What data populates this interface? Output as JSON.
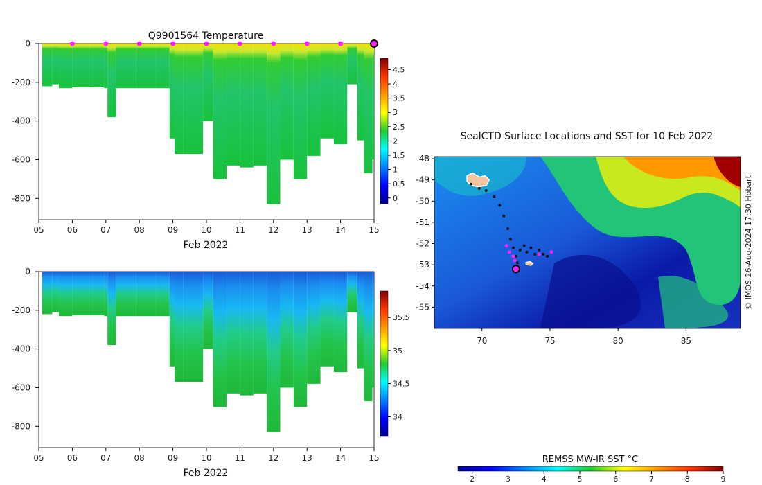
{
  "chart_data": [
    {
      "type": "heatmap",
      "title": "Q9901564  Temperature",
      "xlabel": "Feb 2022",
      "x_ticks": [
        "05",
        "06",
        "07",
        "08",
        "09",
        "10",
        "11",
        "12",
        "13",
        "14",
        "15"
      ],
      "xlim": [
        5,
        15
      ],
      "ylim": [
        -910,
        0
      ],
      "y_ticks": [
        0,
        -200,
        -400,
        -600,
        -800
      ],
      "colorbar": {
        "range": [
          -0.2,
          4.9
        ],
        "ticks": [
          "0",
          "0.5",
          "1",
          "1.5",
          "2",
          "2.5",
          "3",
          "3.5",
          "4",
          "4.5"
        ]
      },
      "markers_days": [
        6,
        7,
        8,
        9,
        10,
        11,
        12,
        13,
        14,
        15
      ],
      "marker_color": "#ff22ff",
      "profile_depth_m": {
        "days": [
          5.1,
          5.4,
          5.6,
          6.0,
          6.5,
          6.95,
          7.05,
          7.3,
          7.9,
          8.5,
          8.9,
          9.05,
          9.3,
          9.9,
          10.2,
          10.6,
          11.0,
          11.4,
          11.8,
          12.2,
          12.6,
          13.0,
          13.4,
          13.8,
          14.2,
          14.5,
          14.7,
          14.95
        ],
        "max_depth": [
          220,
          210,
          230,
          225,
          225,
          230,
          380,
          230,
          230,
          230,
          490,
          570,
          570,
          400,
          700,
          630,
          640,
          630,
          830,
          600,
          700,
          580,
          490,
          520,
          210,
          500,
          670,
          600
        ]
      }
    },
    {
      "type": "heatmap",
      "title": "",
      "xlabel": "Feb 2022",
      "x_ticks": [
        "05",
        "06",
        "07",
        "08",
        "09",
        "10",
        "11",
        "12",
        "13",
        "14",
        "15"
      ],
      "xlim": [
        5,
        15
      ],
      "ylim": [
        -910,
        0
      ],
      "y_ticks": [
        0,
        -200,
        -400,
        -600,
        -800
      ],
      "colorbar": {
        "range": [
          33.7,
          35.9
        ],
        "ticks": [
          "34",
          "34.5",
          "35",
          "35.5"
        ]
      }
    },
    {
      "type": "heatmap",
      "title": "SealCTD Surface Locations and SST for 10 Feb 2022",
      "xlim": [
        66.5,
        89
      ],
      "ylim": [
        -56,
        -47.9
      ],
      "x_ticks": [
        "70",
        "75",
        "80",
        "85"
      ],
      "y_ticks": [
        "-48",
        "-49",
        "-50",
        "-51",
        "-52",
        "-53",
        "-54",
        "-55"
      ],
      "colorbar": {
        "label": "REMSS MW-IR SST °C",
        "range": [
          1.6,
          9
        ],
        "ticks": [
          "2",
          "3",
          "4",
          "5",
          "6",
          "7",
          "8",
          "9"
        ]
      },
      "track_points": [
        [
          69.2,
          -49.2
        ],
        [
          69.8,
          -49.4
        ],
        [
          70.3,
          -49.5
        ],
        [
          70.9,
          -49.8
        ],
        [
          71.3,
          -50.2
        ],
        [
          71.6,
          -50.7
        ],
        [
          71.9,
          -51.3
        ],
        [
          72.1,
          -51.8
        ],
        [
          72.3,
          -52.2
        ],
        [
          72.5,
          -52.6
        ],
        [
          72.6,
          -52.9
        ],
        [
          72.8,
          -52.3
        ],
        [
          73.1,
          -52.1
        ],
        [
          73.3,
          -52.4
        ],
        [
          73.6,
          -52.2
        ],
        [
          73.9,
          -52.5
        ],
        [
          74.2,
          -52.3
        ],
        [
          74.5,
          -52.5
        ],
        [
          74.8,
          -52.6
        ]
      ],
      "magenta_points": [
        [
          71.8,
          -52.1
        ],
        [
          72.0,
          -52.4
        ],
        [
          72.3,
          -52.6
        ],
        [
          72.4,
          -52.8
        ],
        [
          74.2,
          -52.5
        ],
        [
          75.1,
          -52.4
        ]
      ],
      "current_location": [
        72.5,
        -53.2
      ]
    }
  ],
  "watermark": "© IMOS 26-Aug-2024 17:30 Hobart"
}
